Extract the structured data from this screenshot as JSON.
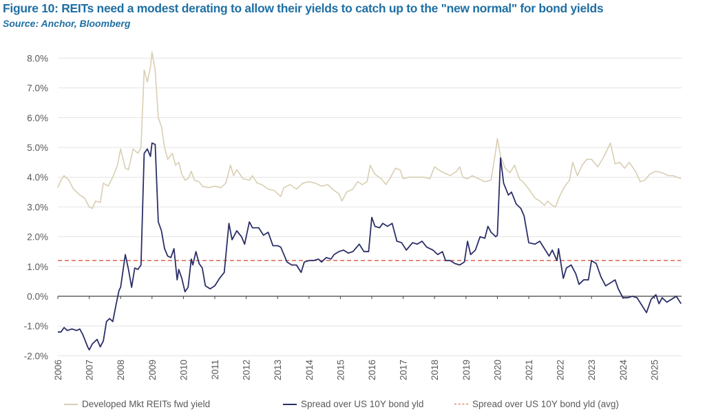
{
  "chart_data": {
    "type": "line",
    "title": "Figure 10: REITs need a modest derating to allow their yields to catch up to the \"new normal\" for bond yields",
    "subtitle": "Source: Anchor, Bloomberg",
    "xlabel": "",
    "ylabel": "",
    "xlim": [
      2006,
      2025.85
    ],
    "ylim": [
      -2.0,
      8.0
    ],
    "x_ticks": [
      "2006",
      "2007",
      "2008",
      "2009",
      "2010",
      "2011",
      "2012",
      "2013",
      "2014",
      "2015",
      "2016",
      "2017",
      "2018",
      "2019",
      "2020",
      "2021",
      "2022",
      "2023",
      "2024",
      "2025"
    ],
    "y_ticks": [
      "-2.0%",
      "-1.0%",
      "0.0%",
      "1.0%",
      "2.0%",
      "3.0%",
      "4.0%",
      "5.0%",
      "6.0%",
      "7.0%",
      "8.0%"
    ],
    "grid": "horizontal",
    "legend": "bottom",
    "series": [
      {
        "name": "Developed Mkt REITs fwd yield",
        "color": "#d9ceb2",
        "style": "solid",
        "x": [
          2006.0,
          2006.1,
          2006.2,
          2006.35,
          2006.5,
          2006.7,
          2006.85,
          2007.0,
          2007.1,
          2007.2,
          2007.35,
          2007.45,
          2007.6,
          2007.75,
          2007.9,
          2008.0,
          2008.15,
          2008.25,
          2008.4,
          2008.55,
          2008.65,
          2008.75,
          2008.85,
          2008.95,
          2009.0,
          2009.1,
          2009.2,
          2009.3,
          2009.4,
          2009.5,
          2009.65,
          2009.75,
          2009.85,
          2009.95,
          2010.05,
          2010.15,
          2010.25,
          2010.35,
          2010.5,
          2010.6,
          2010.8,
          2011.0,
          2011.2,
          2011.35,
          2011.5,
          2011.6,
          2011.7,
          2011.9,
          2012.1,
          2012.2,
          2012.35,
          2012.5,
          2012.7,
          2012.9,
          2013.1,
          2013.2,
          2013.4,
          2013.6,
          2013.8,
          2014.0,
          2014.2,
          2014.4,
          2014.6,
          2014.8,
          2014.95,
          2015.05,
          2015.2,
          2015.4,
          2015.55,
          2015.7,
          2015.85,
          2015.95,
          2016.1,
          2016.3,
          2016.45,
          2016.6,
          2016.75,
          2016.9,
          2017.0,
          2017.2,
          2017.4,
          2017.65,
          2017.85,
          2018.0,
          2018.2,
          2018.5,
          2018.7,
          2018.8,
          2018.9,
          2019.05,
          2019.2,
          2019.4,
          2019.6,
          2019.8,
          2019.95,
          2020.0,
          2020.1,
          2020.25,
          2020.4,
          2020.55,
          2020.7,
          2020.85,
          2021.0,
          2021.2,
          2021.35,
          2021.5,
          2021.6,
          2021.75,
          2021.85,
          2022.0,
          2022.15,
          2022.3,
          2022.4,
          2022.55,
          2022.7,
          2022.85,
          2023.0,
          2023.2,
          2023.4,
          2023.6,
          2023.75,
          2023.9,
          2024.05,
          2024.2,
          2024.4,
          2024.55,
          2024.7,
          2024.85,
          2025.05,
          2025.25,
          2025.45,
          2025.6,
          2025.85
        ],
        "y": [
          3.65,
          3.9,
          4.05,
          3.9,
          3.6,
          3.4,
          3.3,
          3.0,
          2.95,
          3.2,
          3.15,
          3.8,
          3.7,
          4.0,
          4.4,
          4.95,
          4.3,
          4.25,
          4.95,
          4.8,
          5.0,
          7.6,
          7.2,
          7.7,
          8.2,
          7.6,
          6.0,
          5.7,
          5.0,
          4.6,
          4.8,
          4.4,
          4.5,
          4.1,
          3.9,
          3.95,
          4.2,
          3.9,
          3.85,
          3.7,
          3.65,
          3.7,
          3.65,
          3.8,
          4.4,
          4.05,
          4.25,
          3.95,
          3.9,
          4.05,
          3.8,
          3.75,
          3.6,
          3.55,
          3.35,
          3.65,
          3.75,
          3.6,
          3.8,
          3.85,
          3.8,
          3.7,
          3.75,
          3.55,
          3.45,
          3.2,
          3.5,
          3.6,
          3.85,
          3.75,
          3.85,
          4.4,
          4.1,
          3.95,
          3.75,
          4.0,
          4.3,
          4.25,
          3.95,
          4.0,
          4.0,
          4.0,
          3.95,
          4.35,
          4.2,
          4.05,
          4.2,
          4.35,
          4.0,
          3.95,
          4.05,
          3.95,
          3.85,
          3.9,
          4.9,
          5.3,
          4.7,
          4.3,
          4.15,
          4.4,
          3.95,
          3.8,
          3.6,
          3.3,
          3.2,
          3.05,
          3.2,
          3.05,
          3.0,
          3.4,
          3.7,
          3.9,
          4.5,
          4.05,
          4.4,
          4.6,
          4.6,
          4.35,
          4.7,
          5.15,
          4.45,
          4.5,
          4.3,
          4.5,
          4.2,
          3.85,
          3.9,
          4.1,
          4.2,
          4.15,
          4.05,
          4.05,
          3.95
        ]
      },
      {
        "name": "Spread over US 10Y bond yld",
        "color": "#2a2e66",
        "style": "solid",
        "x": [
          2006.0,
          2006.1,
          2006.2,
          2006.3,
          2006.45,
          2006.6,
          2006.7,
          2006.8,
          2006.95,
          2007.0,
          2007.1,
          2007.25,
          2007.35,
          2007.45,
          2007.55,
          2007.65,
          2007.75,
          2007.85,
          2007.95,
          2008.0,
          2008.15,
          2008.25,
          2008.35,
          2008.45,
          2008.55,
          2008.65,
          2008.75,
          2008.85,
          2008.95,
          2009.0,
          2009.1,
          2009.2,
          2009.3,
          2009.4,
          2009.5,
          2009.6,
          2009.7,
          2009.8,
          2009.85,
          2009.95,
          2010.05,
          2010.15,
          2010.25,
          2010.3,
          2010.4,
          2010.5,
          2010.6,
          2010.7,
          2010.85,
          2011.0,
          2011.15,
          2011.3,
          2011.45,
          2011.55,
          2011.7,
          2011.85,
          2011.95,
          2012.1,
          2012.2,
          2012.4,
          2012.55,
          2012.7,
          2012.85,
          2013.0,
          2013.1,
          2013.3,
          2013.45,
          2013.6,
          2013.75,
          2013.85,
          2014.0,
          2014.15,
          2014.3,
          2014.4,
          2014.55,
          2014.7,
          2014.8,
          2014.95,
          2015.1,
          2015.25,
          2015.4,
          2015.6,
          2015.75,
          2015.9,
          2016.0,
          2016.1,
          2016.25,
          2016.35,
          2016.5,
          2016.65,
          2016.8,
          2016.95,
          2017.1,
          2017.3,
          2017.45,
          2017.6,
          2017.75,
          2017.95,
          2018.1,
          2018.25,
          2018.35,
          2018.5,
          2018.65,
          2018.8,
          2018.95,
          2019.05,
          2019.15,
          2019.3,
          2019.45,
          2019.6,
          2019.7,
          2019.8,
          2019.95,
          2020.0,
          2020.1,
          2020.2,
          2020.35,
          2020.45,
          2020.6,
          2020.75,
          2020.85,
          2021.0,
          2021.2,
          2021.35,
          2021.5,
          2021.65,
          2021.75,
          2021.9,
          2021.95,
          2022.1,
          2022.2,
          2022.35,
          2022.5,
          2022.6,
          2022.75,
          2022.9,
          2023.0,
          2023.15,
          2023.3,
          2023.45,
          2023.6,
          2023.75,
          2023.85,
          2024.0,
          2024.15,
          2024.3,
          2024.45,
          2024.6,
          2024.75,
          2024.9,
          2025.05,
          2025.15,
          2025.25,
          2025.4,
          2025.55,
          2025.7,
          2025.85
        ],
        "y": [
          -1.2,
          -1.2,
          -1.05,
          -1.15,
          -1.1,
          -1.15,
          -1.1,
          -1.3,
          -1.7,
          -1.8,
          -1.6,
          -1.45,
          -1.7,
          -1.5,
          -0.85,
          -0.75,
          -0.85,
          -0.3,
          0.2,
          0.3,
          1.4,
          0.9,
          0.3,
          0.95,
          0.9,
          1.05,
          4.8,
          4.95,
          4.7,
          5.15,
          5.1,
          2.5,
          2.2,
          1.6,
          1.35,
          1.3,
          1.6,
          0.55,
          0.9,
          0.6,
          0.15,
          0.3,
          1.25,
          1.05,
          1.5,
          1.1,
          0.95,
          0.35,
          0.25,
          0.35,
          0.6,
          0.8,
          2.45,
          1.9,
          2.2,
          2.0,
          1.75,
          2.5,
          2.3,
          2.3,
          2.05,
          2.15,
          1.7,
          1.7,
          1.65,
          1.15,
          1.05,
          1.05,
          0.8,
          1.15,
          1.2,
          1.2,
          1.25,
          1.15,
          1.3,
          1.25,
          1.4,
          1.5,
          1.55,
          1.45,
          1.5,
          1.75,
          1.5,
          1.5,
          2.65,
          2.35,
          2.3,
          2.45,
          2.35,
          2.45,
          1.85,
          1.8,
          1.55,
          1.8,
          1.75,
          1.85,
          1.65,
          1.55,
          1.4,
          1.5,
          1.2,
          1.2,
          1.1,
          1.05,
          1.15,
          1.85,
          1.4,
          1.55,
          2.0,
          1.95,
          2.35,
          2.15,
          2.0,
          2.05,
          4.65,
          3.8,
          3.4,
          3.5,
          3.1,
          2.95,
          2.7,
          1.8,
          1.75,
          1.85,
          1.6,
          1.35,
          1.55,
          1.2,
          1.6,
          0.6,
          0.95,
          1.05,
          0.75,
          0.4,
          0.55,
          0.55,
          1.2,
          1.1,
          0.65,
          0.35,
          0.45,
          0.55,
          0.25,
          -0.05,
          -0.05,
          0.0,
          -0.05,
          -0.3,
          -0.55,
          -0.1,
          0.05,
          -0.25,
          -0.05,
          -0.2,
          -0.1,
          0.0,
          -0.25
        ]
      },
      {
        "name": "Spread over US 10Y bond yld (avg)",
        "color": "#d9553e",
        "style": "dashed",
        "x": [
          2006.0,
          2025.85
        ],
        "y": [
          1.2,
          1.2
        ]
      }
    ]
  }
}
